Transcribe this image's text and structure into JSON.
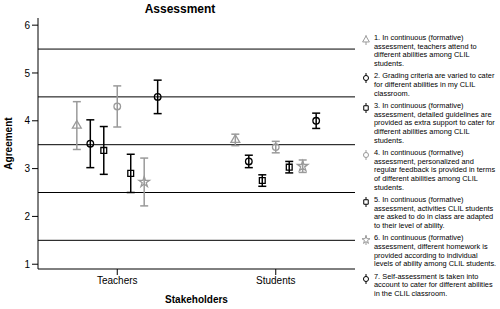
{
  "chart_data": {
    "type": "scatter",
    "title": "Assessment",
    "x_label": "Stakeholders",
    "y_label": "Agreement",
    "categories": [
      "Teachers",
      "Students"
    ],
    "ylim": [
      0.9,
      6.15
    ],
    "yticks": [
      1,
      2,
      3,
      4,
      5,
      6
    ],
    "grid": false,
    "reference_lines": [
      1.5,
      2.5,
      3.5,
      4.5,
      5.5
    ],
    "legend": "right",
    "series": [
      {
        "name": "1. In continuous (formative) assessment, teachers attend to different abilities among CLIL students.",
        "color": "#9a9a9a",
        "marker": "triangle",
        "values": [
          3.9,
          3.6
        ],
        "errors": [
          0.5,
          0.12
        ]
      },
      {
        "name": "2. Grading criteria are varied to cater for different abilities in my CLIL classroom.",
        "color": "#000000",
        "marker": "circle",
        "values": [
          3.52,
          3.15
        ],
        "errors": [
          0.5,
          0.13
        ]
      },
      {
        "name": "3. In continuous (formative) assessment, detailed guidelines are provided as extra support to cater for different abilities among CLIL students.",
        "color": "#000000",
        "marker": "square",
        "values": [
          3.38,
          2.75
        ],
        "errors": [
          0.5,
          0.12
        ]
      },
      {
        "name": "4. In continuous (formative) assessment, personalized and regular feedback is provided in terms of different abilities among CLIL students.",
        "color": "#9a9a9a",
        "marker": "circle",
        "values": [
          4.3,
          3.45
        ],
        "errors": [
          0.43,
          0.12
        ]
      },
      {
        "name": "5. In continuous (formative) assessment, activities CLIL students are asked to do in class are adapted to their level of ability.",
        "color": "#000000",
        "marker": "square",
        "values": [
          2.9,
          3.03
        ],
        "errors": [
          0.4,
          0.12
        ]
      },
      {
        "name": "6. In continuous (formative) assessment, different homework is provided according to individual levels of ability among CLIL students.",
        "color": "#9a9a9a",
        "marker": "star",
        "values": [
          2.72,
          3.05
        ],
        "errors": [
          0.5,
          0.13
        ]
      },
      {
        "name": "7. Self-assessment is taken into account to cater for different abilities in the CLIL classroom.",
        "color": "#000000",
        "marker": "circle",
        "values": [
          4.5,
          4.0
        ],
        "errors": [
          0.35,
          0.16
        ]
      }
    ]
  }
}
